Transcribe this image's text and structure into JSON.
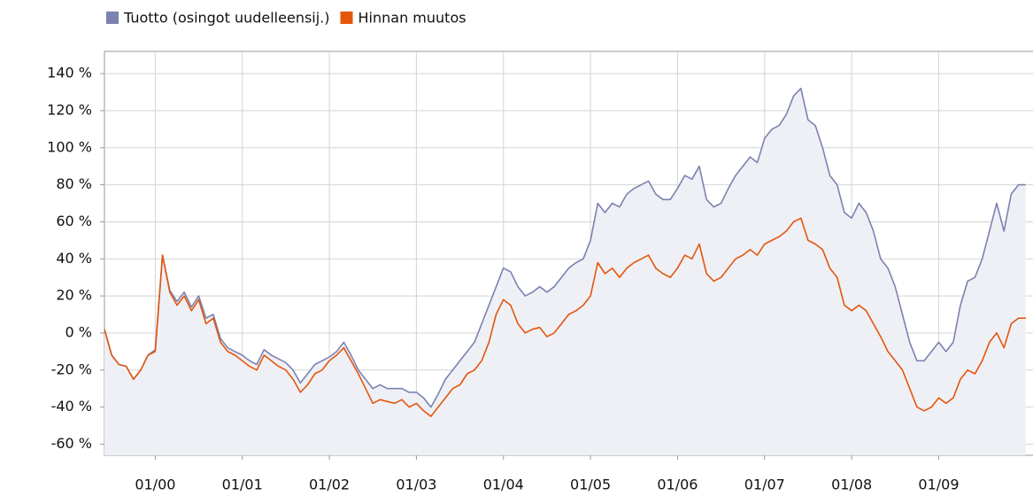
{
  "chart_data": {
    "type": "line",
    "x": [
      "1999-06",
      "1999-07",
      "1999-08",
      "1999-09",
      "1999-10",
      "1999-11",
      "1999-12",
      "2000-01",
      "2000-02",
      "2000-03",
      "2000-04",
      "2000-05",
      "2000-06",
      "2000-07",
      "2000-08",
      "2000-09",
      "2000-10",
      "2000-11",
      "2000-12",
      "2001-01",
      "2001-02",
      "2001-03",
      "2001-04",
      "2001-05",
      "2001-06",
      "2001-07",
      "2001-08",
      "2001-09",
      "2001-10",
      "2001-11",
      "2001-12",
      "2002-01",
      "2002-02",
      "2002-03",
      "2002-04",
      "2002-05",
      "2002-06",
      "2002-07",
      "2002-08",
      "2002-09",
      "2002-10",
      "2002-11",
      "2002-12",
      "2003-01",
      "2003-02",
      "2003-03",
      "2003-04",
      "2003-05",
      "2003-06",
      "2003-07",
      "2003-08",
      "2003-09",
      "2003-10",
      "2003-11",
      "2003-12",
      "2004-01",
      "2004-02",
      "2004-03",
      "2004-04",
      "2004-05",
      "2004-06",
      "2004-07",
      "2004-08",
      "2004-09",
      "2004-10",
      "2004-11",
      "2004-12",
      "2005-01",
      "2005-02",
      "2005-03",
      "2005-04",
      "2005-05",
      "2005-06",
      "2005-07",
      "2005-08",
      "2005-09",
      "2005-10",
      "2005-11",
      "2005-12",
      "2006-01",
      "2006-02",
      "2006-03",
      "2006-04",
      "2006-05",
      "2006-06",
      "2006-07",
      "2006-08",
      "2006-09",
      "2006-10",
      "2006-11",
      "2006-12",
      "2007-01",
      "2007-02",
      "2007-03",
      "2007-04",
      "2007-05",
      "2007-06",
      "2007-07",
      "2007-08",
      "2007-09",
      "2007-10",
      "2007-11",
      "2007-12",
      "2008-01",
      "2008-02",
      "2008-03",
      "2008-04",
      "2008-05",
      "2008-06",
      "2008-07",
      "2008-08",
      "2008-09",
      "2008-10",
      "2008-11",
      "2008-12",
      "2009-01",
      "2009-02",
      "2009-03",
      "2009-04",
      "2009-05",
      "2009-06",
      "2009-07",
      "2009-08",
      "2009-09",
      "2009-10",
      "2009-11",
      "2009-12",
      "2010-01"
    ],
    "series": [
      {
        "name": "Tuotto (osingot uudelleensij.)",
        "color": "#7b82b0",
        "area_color": "#eff0f6",
        "values": [
          2,
          -12,
          -17,
          -18,
          -25,
          -20,
          -12,
          -9,
          42,
          23,
          17,
          22,
          14,
          20,
          8,
          10,
          -3,
          -8,
          -10,
          -12,
          -15,
          -17,
          -9,
          -12,
          -14,
          -16,
          -20,
          -27,
          -22,
          -17,
          -15,
          -13,
          -10,
          -5,
          -12,
          -20,
          -25,
          -30,
          -28,
          -30,
          -30,
          -30,
          -32,
          -32,
          -35,
          -40,
          -33,
          -25,
          -20,
          -15,
          -10,
          -5,
          5,
          15,
          25,
          35,
          33,
          25,
          20,
          22,
          25,
          22,
          25,
          30,
          35,
          38,
          40,
          50,
          70,
          65,
          70,
          68,
          75,
          78,
          80,
          82,
          75,
          72,
          72,
          78,
          85,
          83,
          90,
          72,
          68,
          70,
          78,
          85,
          90,
          95,
          92,
          105,
          110,
          112,
          118,
          128,
          132,
          115,
          112,
          100,
          85,
          80,
          65,
          62,
          70,
          65,
          55,
          40,
          35,
          25,
          10,
          -5,
          -15,
          -15,
          -10,
          -5,
          -10,
          -5,
          15,
          28,
          30,
          40,
          55,
          70,
          55,
          75,
          80,
          80
        ]
      },
      {
        "name": "Hinnan muutos",
        "color": "#e4560c",
        "values": [
          2,
          -12,
          -17,
          -18,
          -25,
          -20,
          -12,
          -10,
          42,
          22,
          15,
          20,
          12,
          18,
          5,
          8,
          -5,
          -10,
          -12,
          -15,
          -18,
          -20,
          -12,
          -15,
          -18,
          -20,
          -25,
          -32,
          -28,
          -22,
          -20,
          -15,
          -12,
          -8,
          -15,
          -22,
          -30,
          -38,
          -36,
          -37,
          -38,
          -36,
          -40,
          -38,
          -42,
          -45,
          -40,
          -35,
          -30,
          -28,
          -22,
          -20,
          -15,
          -5,
          10,
          18,
          15,
          5,
          0,
          2,
          3,
          -2,
          0,
          5,
          10,
          12,
          15,
          20,
          38,
          32,
          35,
          30,
          35,
          38,
          40,
          42,
          35,
          32,
          30,
          35,
          42,
          40,
          48,
          32,
          28,
          30,
          35,
          40,
          42,
          45,
          42,
          48,
          50,
          52,
          55,
          60,
          62,
          50,
          48,
          45,
          35,
          30,
          15,
          12,
          15,
          12,
          5,
          -2,
          -10,
          -15,
          -20,
          -30,
          -40,
          -42,
          -40,
          -35,
          -38,
          -35,
          -25,
          -20,
          -22,
          -15,
          -5,
          0,
          -8,
          5,
          8,
          8
        ]
      }
    ],
    "xlim": [
      "1999-06",
      "2010-02"
    ],
    "xticks": [
      {
        "value": "2000-01",
        "label": "01/00"
      },
      {
        "value": "2001-01",
        "label": "01/01"
      },
      {
        "value": "2002-01",
        "label": "01/02"
      },
      {
        "value": "2003-01",
        "label": "01/03"
      },
      {
        "value": "2004-01",
        "label": "01/04"
      },
      {
        "value": "2005-01",
        "label": "01/05"
      },
      {
        "value": "2006-01",
        "label": "01/06"
      },
      {
        "value": "2007-01",
        "label": "01/07"
      },
      {
        "value": "2008-01",
        "label": "01/08"
      },
      {
        "value": "2009-01",
        "label": "01/09"
      }
    ],
    "ylim": [
      -66,
      152
    ],
    "yticks": [
      {
        "value": 140,
        "label": "140 %"
      },
      {
        "value": 120,
        "label": "120 %"
      },
      {
        "value": 100,
        "label": "100 %"
      },
      {
        "value": 80,
        "label": "80 %"
      },
      {
        "value": 60,
        "label": "60 %"
      },
      {
        "value": 40,
        "label": "40 %"
      },
      {
        "value": 20,
        "label": "20 %"
      },
      {
        "value": 0,
        "label": "0 %"
      },
      {
        "value": -20,
        "label": "-20 %"
      },
      {
        "value": -40,
        "label": "-40 %"
      },
      {
        "value": -60,
        "label": "-60 %"
      }
    ],
    "grid": true,
    "legend": "top"
  }
}
